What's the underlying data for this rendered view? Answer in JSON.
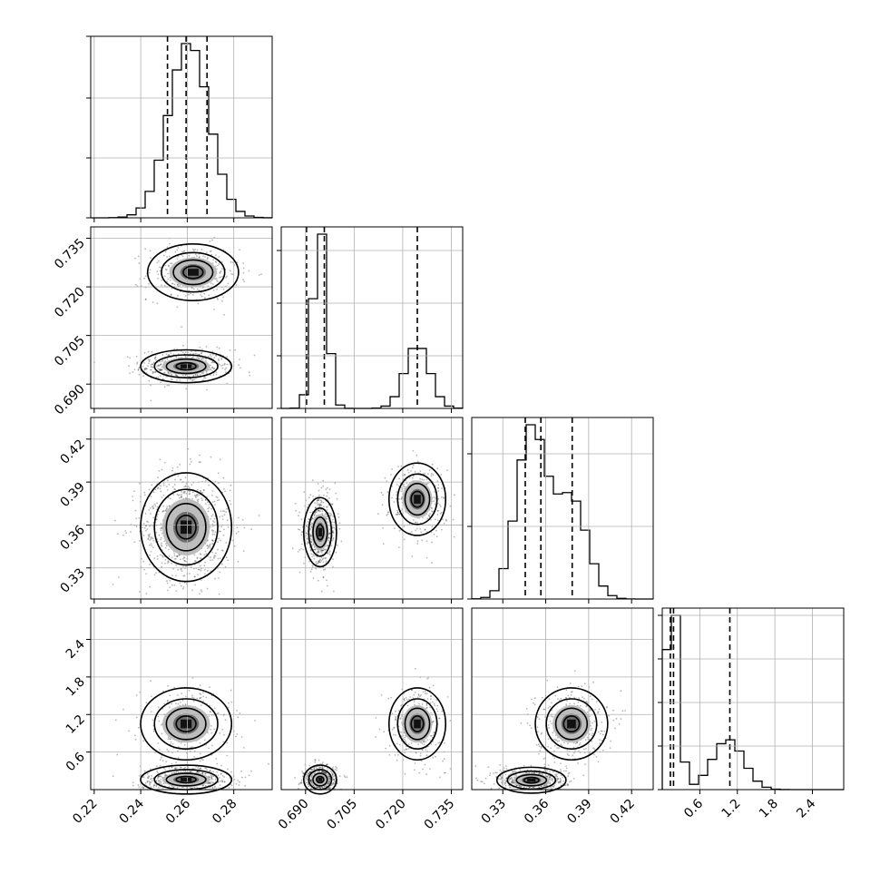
{
  "chart_data": {
    "type": "corner",
    "parameters": 4,
    "grid": true,
    "axes": [
      {
        "ticks": [
          0.22,
          0.24,
          0.26,
          0.28
        ],
        "tick_labels": [
          "0.22",
          "0.24",
          "0.26",
          "0.28"
        ],
        "range": [
          0.2185,
          0.2965
        ]
      },
      {
        "ticks": [
          0.69,
          0.705,
          0.72,
          0.735
        ],
        "tick_labels": [
          "0.690",
          "0.705",
          "0.720",
          "0.735"
        ],
        "range": [
          0.6825,
          0.7385
        ]
      },
      {
        "ticks": [
          0.33,
          0.36,
          0.39,
          0.42
        ],
        "tick_labels": [
          "0.33",
          "0.36",
          "0.39",
          "0.42"
        ],
        "range": [
          0.3083,
          0.4351
        ]
      },
      {
        "ticks": [
          0.6,
          1.2,
          1.8,
          2.4
        ],
        "tick_labels": [
          "0.6",
          "1.2",
          "1.8",
          "2.4"
        ],
        "range": [
          0.0,
          2.9
        ]
      }
    ],
    "diagonal": [
      {
        "quantiles": [
          0.2515,
          0.2595,
          0.2685
        ],
        "max_frac": 0.96,
        "hist_y_ticks_frac": [
          0.0,
          0.33,
          0.66,
          1.0
        ]
      },
      {
        "quantiles": [
          0.6903,
          0.6958,
          0.7245
        ],
        "max_frac": 0.96,
        "hist_y_ticks_frac": [
          0.0,
          0.29,
          0.58,
          0.87
        ]
      },
      {
        "quantiles": [
          0.3457,
          0.3566,
          0.3785
        ],
        "max_frac": 0.96,
        "hist_y_ticks_frac": [
          0.0,
          0.4,
          0.8
        ]
      },
      {
        "quantiles": [
          0.13,
          0.18,
          1.08
        ],
        "max_frac": 0.96,
        "hist_y_ticks_frac": [
          0.0,
          0.24,
          0.48,
          0.72,
          0.96
        ]
      }
    ],
    "pairs": [
      {
        "x_param": 0,
        "y_param": 1,
        "modes": [
          {
            "cx": 0.2595,
            "cy": 0.6955,
            "sx": 0.0085,
            "sy": 0.0022,
            "weight": 0.62
          },
          {
            "cx": 0.2625,
            "cy": 0.7245,
            "sx": 0.0085,
            "sy": 0.0038,
            "weight": 0.38
          }
        ]
      },
      {
        "x_param": 0,
        "y_param": 2,
        "modes": [
          {
            "cx": 0.2595,
            "cy": 0.3585,
            "sx": 0.0085,
            "sy": 0.0165,
            "weight": 1.0
          }
        ]
      },
      {
        "x_param": 0,
        "y_param": 3,
        "modes": [
          {
            "cx": 0.2595,
            "cy": 0.16,
            "sx": 0.0085,
            "sy": 0.1,
            "weight": 0.62
          },
          {
            "cx": 0.2595,
            "cy": 1.05,
            "sx": 0.0085,
            "sy": 0.25,
            "weight": 0.38
          }
        ]
      },
      {
        "x_param": 1,
        "y_param": 2,
        "modes": [
          {
            "cx": 0.6945,
            "cy": 0.355,
            "sx": 0.0022,
            "sy": 0.0105,
            "weight": 0.62
          },
          {
            "cx": 0.7245,
            "cy": 0.378,
            "sx": 0.0038,
            "sy": 0.011,
            "weight": 0.38
          }
        ]
      },
      {
        "x_param": 1,
        "y_param": 3,
        "modes": [
          {
            "cx": 0.6945,
            "cy": 0.16,
            "sx": 0.0022,
            "sy": 0.1,
            "weight": 0.62
          },
          {
            "cx": 0.7245,
            "cy": 1.05,
            "sx": 0.0038,
            "sy": 0.25,
            "weight": 0.38
          }
        ]
      },
      {
        "x_param": 2,
        "y_param": 3,
        "modes": [
          {
            "cx": 0.35,
            "cy": 0.15,
            "sx": 0.0105,
            "sy": 0.09,
            "weight": 0.62
          },
          {
            "cx": 0.378,
            "cy": 1.05,
            "sx": 0.011,
            "sy": 0.25,
            "weight": 0.38
          }
        ]
      }
    ]
  }
}
